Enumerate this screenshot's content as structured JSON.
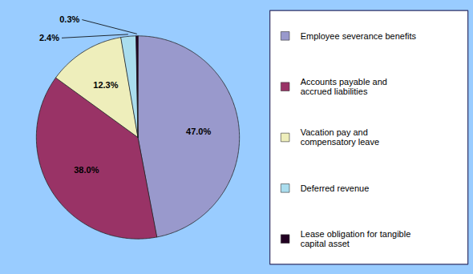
{
  "chart_data": {
    "type": "pie",
    "categories": [
      "Employee severance benefits",
      "Accounts payable and\naccrued liabilities",
      "Vacation pay and\ncompensatory leave",
      "Deferred revenue",
      "Lease obligation for tangible\ncapital asset"
    ],
    "values": [
      47.0,
      38.0,
      12.3,
      2.4,
      0.3
    ],
    "value_labels": [
      "47.0%",
      "38.0%",
      "12.3%",
      "2.4%",
      "0.3%"
    ],
    "colors": [
      "#9999cc",
      "#993366",
      "#eeeebb",
      "#aaddee",
      "#220022"
    ],
    "data_labels": true,
    "legend": "right"
  }
}
